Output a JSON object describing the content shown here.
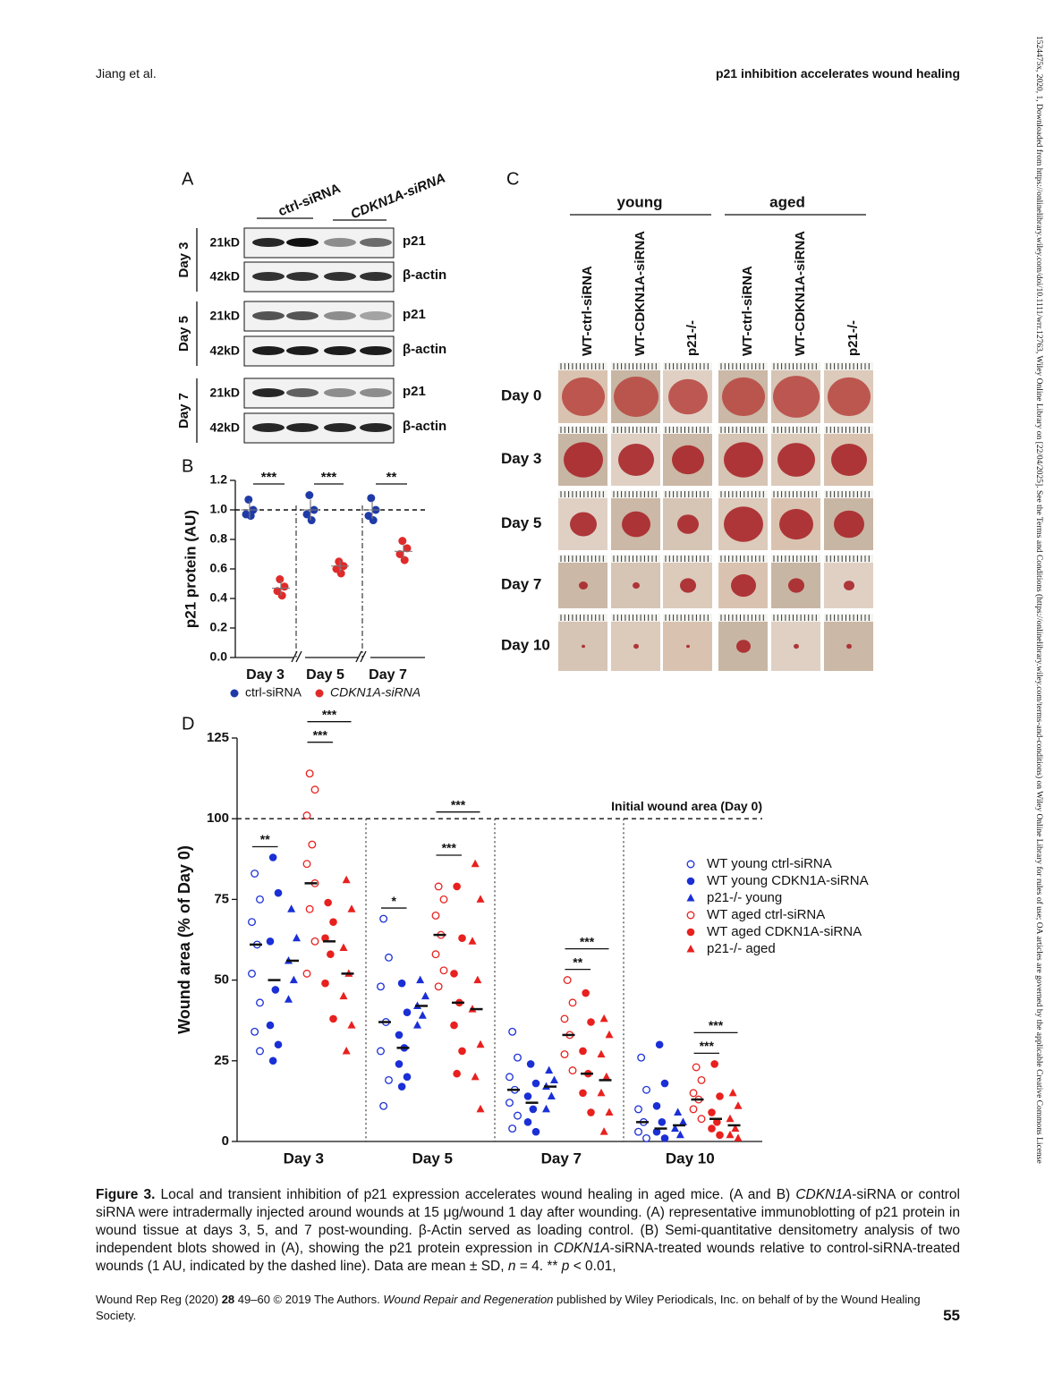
{
  "header": {
    "authors": "Jiang et al.",
    "running_title": "p21 inhibition accelerates wound healing"
  },
  "side_note": "1524475x, 2020, 1, Downloaded from https://onlinelibrary.wiley.com/doi/10.1111/wrr.12763, Wiley Online Library on [22/04/2025]. See the Terms and Conditions (https://onlinelibrary.wiley.com/terms-and-conditions) on Wiley Online Library for rules of use; OA articles are governed by the applicable Creative Commons License",
  "panel_a": {
    "label": "A",
    "groups": [
      "ctrl-siRNA",
      "CDKN1A-siRNA"
    ],
    "days": [
      {
        "day": "Day 3",
        "rows": [
          {
            "size": "21kD",
            "protein": "p21"
          },
          {
            "size": "42kD",
            "protein": "β-actin"
          }
        ]
      },
      {
        "day": "Day 5",
        "rows": [
          {
            "size": "21kD",
            "protein": "p21"
          },
          {
            "size": "42kD",
            "protein": "β-actin"
          }
        ]
      },
      {
        "day": "Day 7",
        "rows": [
          {
            "size": "21kD",
            "protein": "p21"
          },
          {
            "size": "42kD",
            "protein": "β-actin"
          }
        ]
      }
    ]
  },
  "panel_c": {
    "label": "C",
    "groups": [
      "young",
      "aged"
    ],
    "columns": [
      "WT-ctrl-siRNA",
      "WT-CDKN1A-siRNA",
      "p21-/-",
      "WT-ctrl-siRNA",
      "WT-CDKN1A-siRNA",
      "p21-/-"
    ],
    "rows": [
      "Day 0",
      "Day 3",
      "Day 5",
      "Day 7",
      "Day 10"
    ]
  },
  "chart_data": [
    {
      "type": "dot",
      "label": "B",
      "ylabel": "p21 protein (AU)",
      "categories": [
        "Day 3",
        "Day 5",
        "Day 7"
      ],
      "ylim": [
        0,
        1.2
      ],
      "yticks": [
        {
          "value": 0,
          "label": "0.0"
        },
        0.2,
        0.4,
        0.6,
        0.8,
        {
          "value": 1,
          "label": "1.0"
        },
        1.2
      ],
      "reference_line": 1,
      "series": [
        {
          "name": "ctrl-siRNA",
          "color": "#1f3aa8",
          "values": [
            1,
            1,
            1
          ],
          "sd": [
            0.06,
            0.07,
            0.06
          ],
          "points": [
            [
              1.07,
              1.0,
              0.97,
              0.96
            ],
            [
              1.1,
              1.0,
              0.97,
              0.93
            ],
            [
              1.08,
              1.0,
              0.96,
              0.93
            ]
          ]
        },
        {
          "name": "CDKN1A-siRNA",
          "color": "#e02a2a",
          "values": [
            0.47,
            0.62,
            0.72
          ],
          "sd": [
            0.05,
            0.04,
            0.05
          ],
          "points": [
            [
              0.53,
              0.48,
              0.45,
              0.42
            ],
            [
              0.65,
              0.62,
              0.6,
              0.57
            ],
            [
              0.79,
              0.74,
              0.7,
              0.66
            ]
          ]
        }
      ],
      "significance": [
        "***",
        "***",
        "**"
      ]
    },
    {
      "type": "dot",
      "label": "D",
      "ylabel": "Wound area (% of Day 0)",
      "categories": [
        "Day 3",
        "Day 5",
        "Day 7",
        "Day 10"
      ],
      "ylim": [
        0,
        125
      ],
      "yticks": [
        0,
        25,
        50,
        75,
        100,
        125
      ],
      "reference_line": {
        "value": 100,
        "label": "Initial wound area (Day 0)"
      },
      "series": [
        {
          "name": "WT young ctrl-siRNA",
          "color": "#1a2fd6",
          "marker": "open-circle",
          "values": [
            61,
            37,
            16,
            6
          ],
          "points": [
            [
              83,
              75,
              68,
              61,
              52,
              43,
              34,
              28
            ],
            [
              69,
              57,
              48,
              37,
              28,
              19,
              11
            ],
            [
              34,
              26,
              20,
              16,
              12,
              8,
              4
            ],
            [
              26,
              16,
              10,
              6,
              3,
              1
            ]
          ]
        },
        {
          "name": "WT young CDKN1A-siRNA",
          "color": "#1a2fd6",
          "marker": "circle",
          "values": [
            50,
            29,
            12,
            4
          ],
          "points": [
            [
              88,
              77,
              62,
              47,
              36,
              30,
              25
            ],
            [
              49,
              40,
              33,
              29,
              24,
              20,
              17
            ],
            [
              24,
              18,
              14,
              10,
              6,
              3
            ],
            [
              30,
              18,
              11,
              6,
              3,
              1
            ]
          ]
        },
        {
          "name": "p21-/- young",
          "color": "#1a2fd6",
          "marker": "triangle",
          "values": [
            56,
            42,
            17,
            5
          ],
          "points": [
            [
              72,
              63,
              56,
              50,
              44
            ],
            [
              50,
              45,
              42,
              39,
              36
            ],
            [
              22,
              19,
              17,
              14,
              10
            ],
            [
              9,
              6,
              4,
              2
            ]
          ]
        },
        {
          "name": "WT aged ctrl-siRNA",
          "color": "#e8201e",
          "marker": "open-circle",
          "values": [
            80,
            64,
            33,
            13
          ],
          "points": [
            [
              114,
              109,
              101,
              92,
              86,
              80,
              72,
              62,
              52
            ],
            [
              79,
              75,
              70,
              64,
              58,
              53,
              48
            ],
            [
              50,
              43,
              38,
              33,
              27,
              22
            ],
            [
              23,
              19,
              15,
              13,
              10,
              7
            ]
          ]
        },
        {
          "name": "WT aged CDKN1A-siRNA",
          "color": "#e8201e",
          "marker": "circle",
          "values": [
            62,
            43,
            21,
            7
          ],
          "points": [
            [
              74,
              68,
              63,
              58,
              49,
              38
            ],
            [
              79,
              63,
              52,
              43,
              36,
              28,
              21
            ],
            [
              46,
              37,
              28,
              21,
              15,
              9
            ],
            [
              24,
              14,
              9,
              6,
              4,
              2
            ]
          ]
        },
        {
          "name": "p21-/- aged",
          "color": "#e8201e",
          "marker": "triangle",
          "values": [
            52,
            41,
            19,
            5
          ],
          "points": [
            [
              81,
              72,
              60,
              52,
              45,
              36,
              28
            ],
            [
              86,
              75,
              62,
              50,
              41,
              30,
              20,
              10
            ],
            [
              38,
              33,
              27,
              20,
              15,
              9,
              3
            ],
            [
              15,
              11,
              7,
              4,
              2,
              1
            ]
          ]
        }
      ],
      "significance": [
        {
          "category": "Day 3",
          "groups": [
            "WT young ctrl-siRNA",
            "WT young CDKN1A-siRNA"
          ],
          "text": "**"
        },
        {
          "category": "Day 3",
          "groups": [
            "WT aged ctrl-siRNA",
            "WT aged CDKN1A-siRNA"
          ],
          "text": "***"
        },
        {
          "category": "Day 3",
          "groups": [
            "WT aged ctrl-siRNA",
            "p21-/- aged"
          ],
          "text": "***"
        },
        {
          "category": "Day 5",
          "groups": [
            "WT young ctrl-siRNA",
            "WT young CDKN1A-siRNA"
          ],
          "text": "*"
        },
        {
          "category": "Day 5",
          "groups": [
            "WT aged ctrl-siRNA",
            "WT aged CDKN1A-siRNA"
          ],
          "text": "***"
        },
        {
          "category": "Day 5",
          "groups": [
            "WT aged ctrl-siRNA",
            "p21-/- aged"
          ],
          "text": "***"
        },
        {
          "category": "Day 7",
          "groups": [
            "WT aged ctrl-siRNA",
            "WT aged CDKN1A-siRNA"
          ],
          "text": "**"
        },
        {
          "category": "Day 7",
          "groups": [
            "WT aged ctrl-siRNA",
            "p21-/- aged"
          ],
          "text": "***"
        },
        {
          "category": "Day 10",
          "groups": [
            "WT aged ctrl-siRNA",
            "WT aged CDKN1A-siRNA"
          ],
          "text": "***"
        },
        {
          "category": "Day 10",
          "groups": [
            "WT aged ctrl-siRNA",
            "p21-/- aged"
          ],
          "text": "***"
        }
      ]
    }
  ],
  "caption": {
    "label": "Figure 3.",
    "segments": [
      " Local and transient inhibition of p21 expression accelerates wound healing in aged mice. (A and B) ",
      "CDKN1A",
      "-siRNA or control siRNA were intradermally injected around wounds at 15 μg/wound 1 day after wounding. (A) representative immunoblotting of p21 protein in wound tissue at days 3, 5, and 7 post-wounding. β-Actin served as loading control. (B) Semi-quantitative densitometry analysis of two independent blots showed in (A), showing the p21 protein expression in ",
      "CDKN1A",
      "-siRNA-treated wounds relative to control-siRNA-treated wounds (1 AU, indicated by the dashed line). Data are mean ± SD, ",
      "n",
      " = 4. ** ",
      "p",
      " < 0.01,"
    ]
  },
  "footer": {
    "segments": [
      "Wound Rep Reg (2020) ",
      "28",
      " 49–60 © 2019 The Authors. ",
      "Wound Repair and Regeneration",
      " published by Wiley Periodicals, Inc. on behalf of by the Wound Healing Society."
    ],
    "page": "55"
  }
}
